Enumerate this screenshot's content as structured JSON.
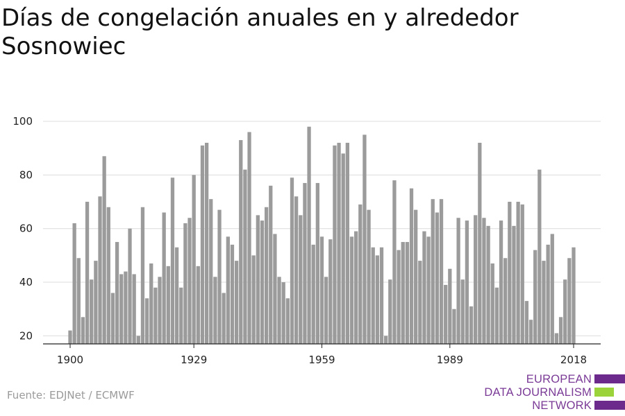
{
  "title": "Días de congelación anuales en y alrededor Sosnowiec",
  "source": "Fuente: EDJNet / ECMWF",
  "logo": {
    "lines": [
      "EUROPEAN",
      "DATA JOURNALISM",
      "NETWORK"
    ],
    "colors": [
      "#6b2a8c",
      "#9bd43a",
      "#6b2a8c"
    ]
  },
  "colors": {
    "bar": "#9b9b9b",
    "grid": "#dcdcdc",
    "axis": "#222222"
  },
  "chart_data": {
    "type": "bar",
    "title": "Días de congelación anuales en y alrededor Sosnowiec",
    "xlabel": "",
    "ylabel": "",
    "ylim": [
      17,
      100
    ],
    "yticks": [
      20,
      40,
      60,
      80,
      100
    ],
    "xticks": [
      1900,
      1929,
      1959,
      1989,
      2018
    ],
    "grid": true,
    "x": [
      1900,
      1901,
      1902,
      1903,
      1904,
      1905,
      1906,
      1907,
      1908,
      1909,
      1910,
      1911,
      1912,
      1913,
      1914,
      1915,
      1916,
      1917,
      1918,
      1919,
      1920,
      1921,
      1922,
      1923,
      1924,
      1925,
      1926,
      1927,
      1928,
      1929,
      1930,
      1931,
      1932,
      1933,
      1934,
      1935,
      1936,
      1937,
      1938,
      1939,
      1940,
      1941,
      1942,
      1943,
      1944,
      1945,
      1946,
      1947,
      1948,
      1949,
      1950,
      1951,
      1952,
      1953,
      1954,
      1955,
      1956,
      1957,
      1958,
      1959,
      1960,
      1961,
      1962,
      1963,
      1964,
      1965,
      1966,
      1967,
      1968,
      1969,
      1970,
      1971,
      1972,
      1973,
      1974,
      1975,
      1976,
      1977,
      1978,
      1979,
      1980,
      1981,
      1982,
      1983,
      1984,
      1985,
      1986,
      1987,
      1988,
      1989,
      1990,
      1991,
      1992,
      1993,
      1994,
      1995,
      1996,
      1997,
      1998,
      1999,
      2000,
      2001,
      2002,
      2003,
      2004,
      2005,
      2006,
      2007,
      2008,
      2009,
      2010,
      2011,
      2012,
      2013,
      2014,
      2015,
      2016,
      2017,
      2018
    ],
    "values": [
      22,
      62,
      49,
      27,
      70,
      41,
      48,
      72,
      87,
      68,
      36,
      55,
      43,
      44,
      60,
      43,
      20,
      68,
      34,
      47,
      38,
      42,
      66,
      46,
      79,
      53,
      38,
      62,
      64,
      80,
      46,
      91,
      92,
      71,
      42,
      67,
      36,
      57,
      54,
      48,
      93,
      82,
      96,
      50,
      65,
      63,
      68,
      76,
      58,
      42,
      40,
      34,
      79,
      72,
      65,
      77,
      98,
      54,
      77,
      57,
      42,
      56,
      91,
      92,
      88,
      92,
      57,
      59,
      69,
      95,
      67,
      53,
      50,
      53,
      20,
      41,
      78,
      52,
      55,
      55,
      75,
      67,
      48,
      59,
      57,
      71,
      66,
      71,
      39,
      45,
      30,
      64,
      41,
      63,
      31,
      65,
      92,
      64,
      61,
      47,
      38,
      63,
      49,
      70,
      61,
      70,
      69,
      33,
      26,
      52,
      82,
      48,
      54,
      58,
      21,
      27,
      41,
      49,
      53
    ]
  }
}
